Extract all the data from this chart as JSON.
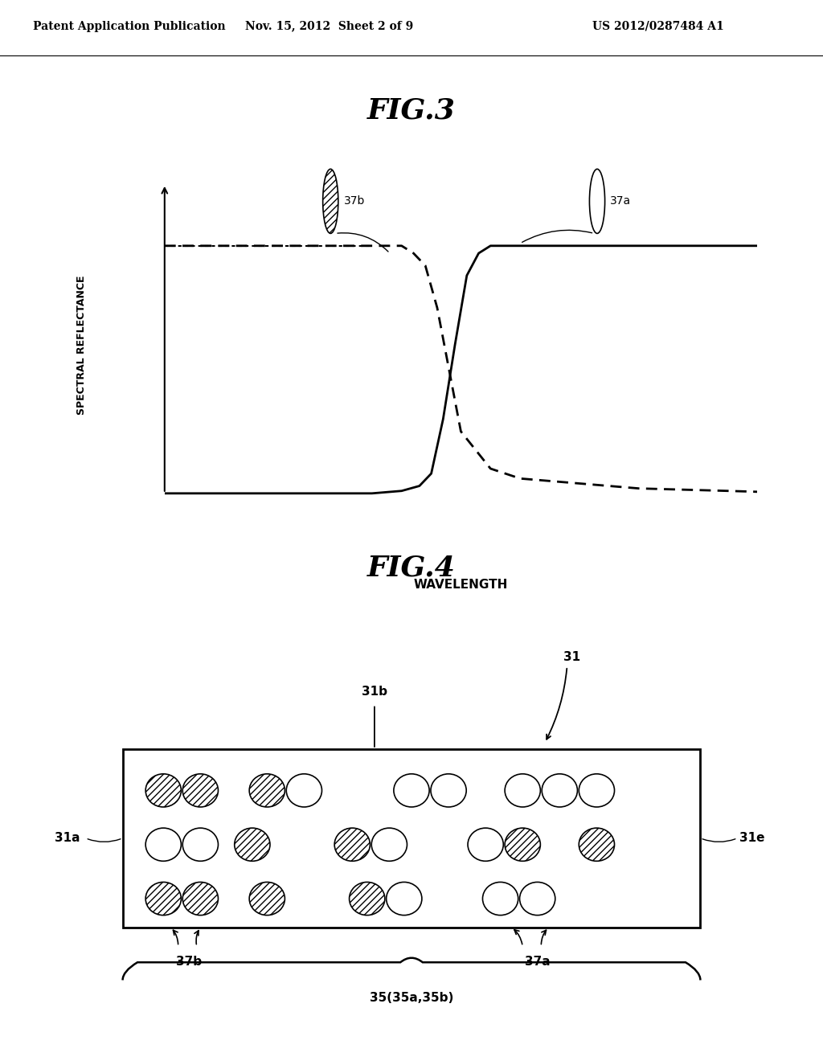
{
  "bg_color": "#ffffff",
  "header_text": "Patent Application Publication",
  "header_date": "Nov. 15, 2012  Sheet 2 of 9",
  "header_patent": "US 2012/0287484 A1",
  "fig3_title": "FIG.3",
  "fig4_title": "FIG.4",
  "ylabel": "SPECTRAL REFLECTANCE",
  "xlabel": "WAVELENGTH",
  "label_37a": "37a",
  "label_37b": "37b",
  "label_31": "31",
  "label_31a": "31a",
  "label_31b": "31b",
  "label_31e": "31e",
  "label_37a_bot": "37a",
  "label_37b_bot": "37b",
  "label_35": "35(35a,35b)"
}
